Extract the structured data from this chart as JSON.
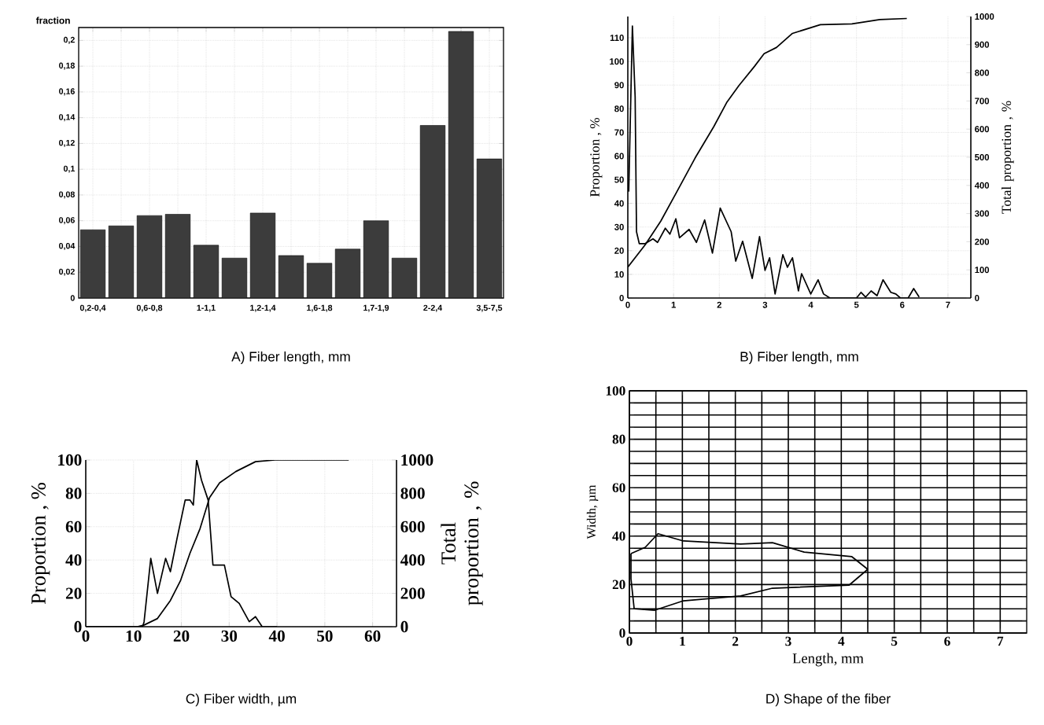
{
  "chart_data": [
    {
      "type": "bar",
      "title": "A) Fiber length, mm",
      "ylabel": "fraction",
      "categories": [
        "0,2-0,4",
        null,
        "0,6-0,8",
        null,
        "1-1,1",
        null,
        "1,2-1,4",
        null,
        "1,6-1,8",
        null,
        "1,7-1,9",
        null,
        "2-2,4",
        null,
        "3,5-7,5"
      ],
      "values": [
        0.053,
        0.056,
        0.064,
        0.065,
        0.041,
        0.031,
        0.066,
        0.033,
        0.027,
        0.038,
        0.06,
        0.031,
        0.134,
        0.207,
        0.108
      ],
      "color": "#3c3c3c",
      "ylim": [
        0,
        0.21
      ],
      "yticks": [
        0,
        {
          "value": 0.02,
          "label": "0,02"
        },
        {
          "value": 0.04,
          "label": "0,04"
        },
        {
          "value": 0.06,
          "label": "0,06"
        },
        {
          "value": 0.08,
          "label": "0,08"
        },
        {
          "value": 0.1,
          "label": "0,1"
        },
        {
          "value": 0.12,
          "label": "0,12"
        },
        {
          "value": 0.14,
          "label": "0,14"
        },
        {
          "value": 0.16,
          "label": "0,16"
        },
        {
          "value": 0.18,
          "label": "0,18"
        },
        {
          "value": 0.2,
          "label": "0,2"
        }
      ],
      "grid": true
    },
    {
      "type": "line",
      "title": "B) Fiber length, mm",
      "ylabel": "Proportion , %",
      "y2label": "Total proportion , %",
      "xlim": [
        0,
        7.5
      ],
      "xticks": [
        0,
        1,
        2,
        3,
        4,
        5,
        6,
        7
      ],
      "ylim": [
        0,
        119
      ],
      "yticks": [
        0,
        10,
        20,
        30,
        40,
        50,
        60,
        70,
        80,
        90,
        100,
        110
      ],
      "y2lim": [
        0,
        1000
      ],
      "y2ticks": [
        0,
        100,
        200,
        300,
        400,
        500,
        600,
        700,
        800,
        900,
        1000
      ],
      "grid": true,
      "series": [
        {
          "color": "#000000",
          "x": [
            0.02,
            0.1,
            0.16,
            0.19,
            0.25,
            0.38,
            0.55,
            0.65,
            0.82,
            0.92,
            1.05,
            1.13,
            1.34,
            1.5,
            1.68,
            1.85,
            2.02,
            2.26,
            2.36,
            2.51,
            2.72,
            2.88,
            3.0,
            3.1,
            3.22,
            3.39,
            3.49,
            3.6,
            3.73,
            3.8,
            4.0,
            4.16,
            4.28,
            4.42,
            5.0,
            5.1,
            5.2,
            5.32,
            5.45,
            5.58,
            5.75,
            5.86,
            5.96,
            6.13,
            6.25,
            6.37
          ],
          "values": [
            45,
            115,
            85,
            28,
            23,
            23,
            25,
            23.5,
            29.5,
            27,
            33.5,
            25.5,
            29,
            23.5,
            33,
            19,
            38,
            28,
            15.6,
            24,
            8.3,
            26,
            11.7,
            17,
            1.7,
            18.3,
            13,
            17,
            3,
            10.3,
            1.7,
            7.7,
            1.7,
            0,
            0,
            2.4,
            0.4,
            3,
            1,
            7.7,
            2.4,
            1.7,
            0,
            0,
            4,
            0.4
          ]
        },
        {
          "color": "#000000",
          "axis": "y2",
          "x": [
            0,
            0.38,
            0.72,
            1.06,
            1.47,
            1.88,
            2.16,
            2.43,
            2.77,
            2.98,
            3.25,
            3.6,
            4.21,
            4.9,
            5.51,
            6.1
          ],
          "values": [
            110,
            189,
            273,
            374,
            497,
            609,
            694,
            755,
            823,
            868,
            890,
            940,
            971,
            974,
            989,
            993
          ]
        }
      ]
    },
    {
      "type": "line",
      "title": "C) Fiber width, µm",
      "ylabel": "Proportion , %",
      "y2label": "Total proportion , %",
      "xlim": [
        0,
        65
      ],
      "xticks": [
        0,
        10,
        20,
        30,
        40,
        50,
        60
      ],
      "ylim": [
        0,
        100
      ],
      "yticks": [
        0,
        20,
        40,
        60,
        80,
        100
      ],
      "y2lim": [
        0,
        1000
      ],
      "y2ticks": [
        0,
        200,
        400,
        600,
        800,
        1000
      ],
      "grid": true,
      "series": [
        {
          "color": "#000000",
          "x": [
            0,
            11.9,
            12.2,
            13.6,
            15,
            16.7,
            17.7,
            19.1,
            20.8,
            21.8,
            22.5,
            23.2,
            24.2,
            25.6,
            26.6,
            29,
            30.4,
            32.1,
            34.2,
            35.5,
            36.9,
            40
          ],
          "values": [
            0,
            0,
            3,
            41,
            20,
            41,
            33,
            53,
            76,
            76,
            73,
            100,
            88,
            76,
            37,
            37,
            18,
            14,
            3,
            6,
            0,
            0
          ]
        },
        {
          "color": "#000000",
          "axis": "y2",
          "x": [
            0,
            10.8,
            12.2,
            15,
            17.7,
            19.8,
            21.8,
            23.9,
            25.9,
            28,
            31.4,
            35.5,
            39.6,
            55
          ],
          "values": [
            0,
            0,
            10,
            49,
            157,
            275,
            441,
            588,
            775,
            863,
            931,
            990,
            1000,
            1000
          ]
        }
      ]
    },
    {
      "type": "line",
      "title": "D) Shape of the fiber",
      "xlabel": "Length, mm",
      "ylabel": "Width, µm",
      "xlim": [
        0,
        7.5
      ],
      "xticks": [
        0,
        {
          "value": 0.5,
          "label": null
        },
        1,
        {
          "value": 1.5,
          "label": null
        },
        2,
        {
          "value": 2.5,
          "label": null
        },
        3,
        {
          "value": 3.5,
          "label": null
        },
        4,
        {
          "value": 4.5,
          "label": null
        },
        5,
        {
          "value": 5.5,
          "label": null
        },
        6,
        {
          "value": 6.5,
          "label": null
        },
        7
      ],
      "ylim": [
        0,
        100
      ],
      "yticks": [
        0,
        {
          "value": 5,
          "label": null
        },
        {
          "value": 10,
          "label": null
        },
        {
          "value": 15,
          "label": null
        },
        20,
        {
          "value": 25,
          "label": null
        },
        {
          "value": 30,
          "label": null
        },
        {
          "value": 35,
          "label": null
        },
        40,
        {
          "value": 45,
          "label": null
        },
        {
          "value": 50,
          "label": null
        },
        {
          "value": 55,
          "label": null
        },
        60,
        {
          "value": 65,
          "label": null
        },
        {
          "value": 70,
          "label": null
        },
        {
          "value": 75,
          "label": null
        },
        80,
        {
          "value": 85,
          "label": null
        },
        {
          "value": 90,
          "label": null
        },
        {
          "value": 95,
          "label": null
        },
        100
      ],
      "grid": true,
      "series": [
        {
          "color": "#000000",
          "x": [
            0.03,
            0.3,
            0.54,
            1.02,
            2.1,
            2.7,
            3.3,
            4.2,
            4.5
          ],
          "values": [
            32.8,
            35.4,
            41,
            38,
            36.7,
            37.3,
            33.4,
            31.5,
            26.3
          ]
        },
        {
          "color": "#000000",
          "x": [
            0.03,
            0.03,
            0.09,
            0.48,
            1.02,
            2.1,
            2.7,
            4.15,
            4.5
          ],
          "values": [
            32.8,
            22.4,
            10,
            9.4,
            13.3,
            15.3,
            18.5,
            19.8,
            26.3
          ]
        }
      ]
    }
  ]
}
